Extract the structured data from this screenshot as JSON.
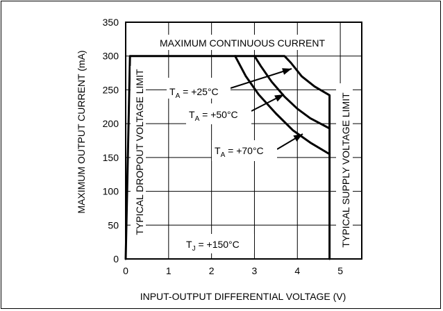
{
  "chart_data": {
    "type": "line",
    "xlabel": "INPUT-OUTPUT DIFFERENTIAL VOLTAGE (V)",
    "ylabel": "MAXIMUM OUTPUT CURRENT (mA)",
    "xlim": [
      0,
      5.5
    ],
    "ylim": [
      0,
      350
    ],
    "x_ticks": [
      0,
      1,
      2,
      3,
      4,
      5
    ],
    "y_ticks": [
      0,
      50,
      100,
      150,
      200,
      250,
      300,
      350
    ],
    "grid": true,
    "legend": "none",
    "series": [
      {
        "name": "T_A = +25°C",
        "x": [
          0.0,
          0.1,
          0.15,
          3.7,
          3.85,
          4.1,
          4.4,
          4.75,
          4.75
        ],
        "y": [
          0,
          300,
          300,
          300,
          290,
          270,
          255,
          242,
          0
        ]
      },
      {
        "name": "T_A = +50°C",
        "x": [
          3.0,
          3.15,
          3.4,
          3.7,
          4.0,
          4.3,
          4.75
        ],
        "y": [
          300,
          285,
          262,
          240,
          222,
          208,
          193
        ]
      },
      {
        "name": "T_A = +70°C",
        "x": [
          2.55,
          2.8,
          3.1,
          3.5,
          3.9,
          4.3,
          4.75
        ],
        "y": [
          300,
          270,
          243,
          215,
          190,
          172,
          155
        ]
      }
    ],
    "annotations": {
      "top": "MAXIMUM CONTINUOUS CURRENT",
      "left_vertical": "TYPICAL DROPOUT VOLTAGE LIMIT",
      "right_vertical": "TYPICAL SUPPLY VOLTAGE LIMIT",
      "label_25": {
        "main": "T",
        "sub": "A",
        "rest": " = +25°C"
      },
      "label_50": {
        "main": "T",
        "sub": "A",
        "rest": " = +50°C"
      },
      "label_70": {
        "main": "T",
        "sub": "A",
        "rest": " = +70°C"
      },
      "label_tj": {
        "main": "T",
        "sub": "J",
        "rest": " = +150°C"
      }
    }
  }
}
